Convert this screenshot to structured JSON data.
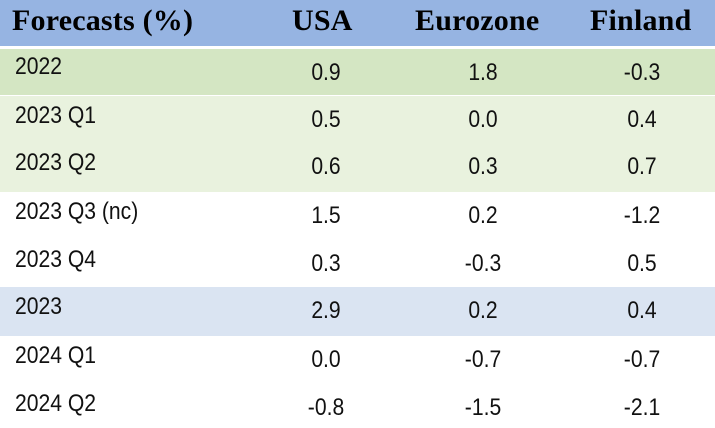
{
  "chart_data": {
    "type": "table",
    "columns": [
      "Forecasts (%)",
      "USA",
      "Eurozone",
      "Finland"
    ],
    "rows": [
      {
        "label": "2022",
        "values": [
          "0.9",
          "1.8",
          "-0.3"
        ],
        "shade": "#d4e6c3"
      },
      {
        "label": "2023 Q1",
        "values": [
          "0.5",
          "0.0",
          "0.4"
        ],
        "shade": "#e9f2de"
      },
      {
        "label": "2023 Q2",
        "values": [
          "0.6",
          "0.3",
          "0.7"
        ],
        "shade": "#e9f2de"
      },
      {
        "label": "2023 Q3 (nc)",
        "values": [
          "1.5",
          "0.2",
          "-1.2"
        ],
        "shade": "#ffffff"
      },
      {
        "label": "2023 Q4",
        "values": [
          "0.3",
          "-0.3",
          "0.5"
        ],
        "shade": "#ffffff"
      },
      {
        "label": "2023",
        "values": [
          "2.9",
          "0.2",
          "0.4"
        ],
        "shade": "#dae4f2"
      },
      {
        "label": "2024 Q1",
        "values": [
          "0.0",
          "-0.7",
          "-0.7"
        ],
        "shade": "#ffffff"
      },
      {
        "label": "2024 Q2",
        "values": [
          "-0.8",
          "-1.5",
          "-2.1"
        ],
        "shade": "#ffffff"
      }
    ],
    "header_color": "#96b4e2"
  }
}
